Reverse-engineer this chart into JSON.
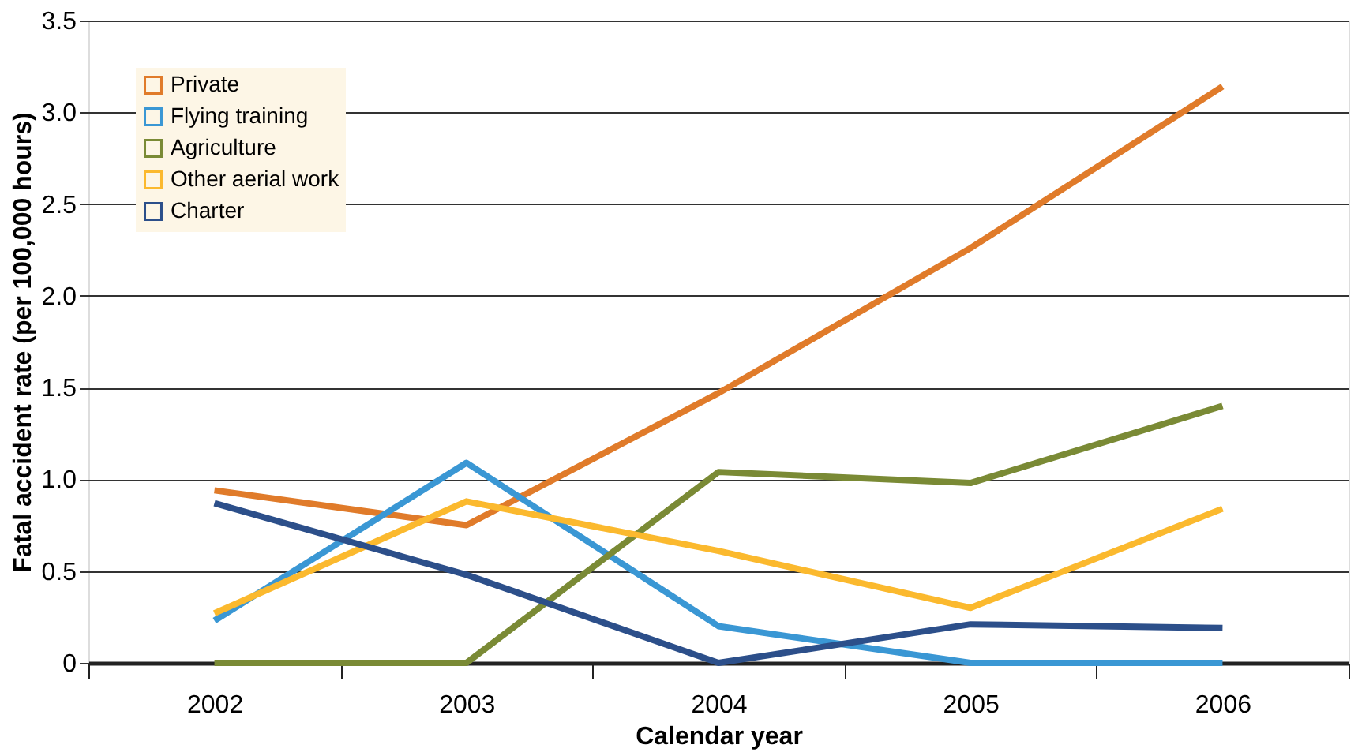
{
  "chart_data": {
    "type": "line",
    "xlabel": "Calendar year",
    "ylabel": "Fatal accident rate (per 100,000 hours)",
    "categories": [
      "2002",
      "2003",
      "2004",
      "2005",
      "2006"
    ],
    "series": [
      {
        "name": "Private",
        "color": "#e07b2a",
        "values": [
          0.94,
          0.75,
          1.47,
          2.26,
          3.14
        ]
      },
      {
        "name": "Flying training",
        "color": "#3a97d4",
        "values": [
          0.23,
          1.09,
          0.2,
          0,
          0
        ]
      },
      {
        "name": "Agriculture",
        "color": "#7a8a35",
        "values": [
          0,
          0,
          1.04,
          0.98,
          1.4
        ]
      },
      {
        "name": "Other aerial work",
        "color": "#fbb92e",
        "values": [
          0.27,
          0.88,
          0.61,
          0.3,
          0.84
        ]
      },
      {
        "name": "Charter",
        "color": "#2c4f8a",
        "values": [
          0.87,
          0.48,
          0,
          0.21,
          0.19
        ]
      }
    ],
    "ylim": [
      0,
      3.5
    ],
    "yticks": [
      0,
      0.5,
      {
        "value": 1,
        "label": "1.0"
      },
      1.5,
      {
        "value": 2,
        "label": "2.0"
      },
      2.5,
      {
        "value": 3,
        "label": "3.0"
      },
      3.5
    ],
    "grid": "y",
    "legend": "top left",
    "marker": "none",
    "line_style": "solid"
  }
}
